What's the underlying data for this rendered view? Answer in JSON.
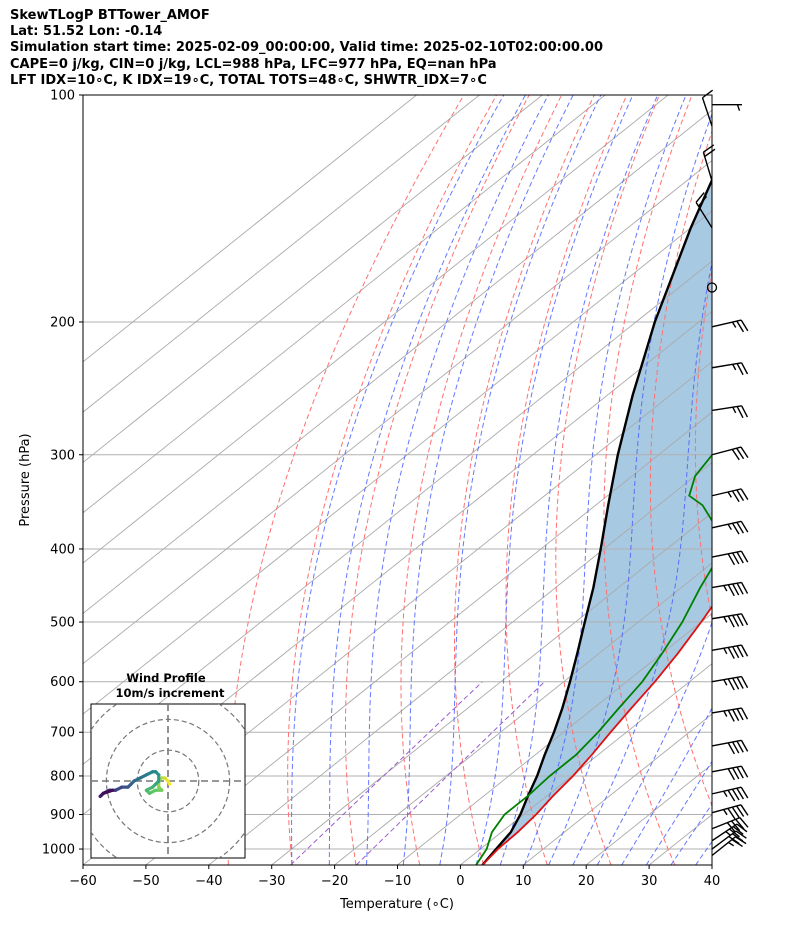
{
  "chart_data": {
    "type": "skewt-logp",
    "title_lines": [
      "SkewTLogP BTTower_AMOF",
      "Lat: 51.52   Lon: -0.14",
      "Simulation start time: 2025-02-09_00:00:00, Valid time: 2025-02-10T02:00:00.00",
      "CAPE=0 j/kg, CIN=0 j/kg, LCL=988 hPa, LFC=977 hPa, EQ=nan hPa",
      "LFT IDX=10∘C, K IDX=19∘C, TOTAL TOTS=48∘C, SHWTR_IDX=7∘C"
    ],
    "xlabel": "Temperature (∘C)",
    "ylabel": "Pressure (hPa)",
    "xlim": [
      -60,
      40
    ],
    "ylim": [
      1050,
      100
    ],
    "x_ticks": [
      -60,
      -50,
      -40,
      -30,
      -20,
      -10,
      0,
      10,
      20,
      30,
      40
    ],
    "y_ticks": [
      1000,
      900,
      800,
      700,
      600,
      500,
      400,
      300,
      200,
      100
    ],
    "temperature": {
      "color": "#e01010",
      "points": [
        [
          1050,
          3.5
        ],
        [
          1000,
          2.8
        ],
        [
          950,
          2.6
        ],
        [
          900,
          2.0
        ],
        [
          850,
          1.0
        ],
        [
          800,
          0.2
        ],
        [
          750,
          -1.0
        ],
        [
          700,
          -2.5
        ],
        [
          650,
          -4.0
        ],
        [
          600,
          -5.5
        ],
        [
          550,
          -7.5
        ],
        [
          500,
          -10.0
        ],
        [
          450,
          -13.0
        ],
        [
          400,
          -17.0
        ],
        [
          380,
          -20.5
        ],
        [
          350,
          -25.5
        ],
        [
          320,
          -29.5
        ],
        [
          300,
          -32.5
        ],
        [
          275,
          -35.0
        ],
        [
          250,
          -39.5
        ],
        [
          220,
          -45.0
        ],
        [
          200,
          -49.0
        ],
        [
          180,
          -53.5
        ],
        [
          160,
          -57.5
        ],
        [
          145,
          -59.5
        ],
        [
          125,
          -61.0
        ],
        [
          112,
          -62.0
        ],
        [
          100,
          -63.5
        ]
      ]
    },
    "dewpoint": {
      "color": "#008000",
      "points": [
        [
          1050,
          2.5
        ],
        [
          1000,
          1.0
        ],
        [
          950,
          -1.5
        ],
        [
          900,
          -3.0
        ],
        [
          850,
          -3.0
        ],
        [
          800,
          -3.5
        ],
        [
          750,
          -3.5
        ],
        [
          700,
          -4.5
        ],
        [
          650,
          -6.0
        ],
        [
          600,
          -7.5
        ],
        [
          550,
          -10.0
        ],
        [
          500,
          -13.0
        ],
        [
          450,
          -17.0
        ],
        [
          400,
          -21.0
        ],
        [
          380,
          -25.0
        ],
        [
          350,
          -33.0
        ],
        [
          340,
          -37.0
        ],
        [
          320,
          -40.0
        ],
        [
          300,
          -41.5
        ],
        [
          275,
          -43.0
        ],
        [
          250,
          -45.5
        ],
        [
          220,
          -50.5
        ],
        [
          200,
          -55.0
        ],
        [
          180,
          -61.0
        ],
        [
          160,
          -68.0
        ],
        [
          140,
          -76.0
        ],
        [
          120,
          -84.0
        ],
        [
          100,
          -92.0
        ]
      ]
    },
    "parcel_profile": {
      "color": "#000000",
      "points": [
        [
          1050,
          3.5
        ],
        [
          1000,
          2.5
        ],
        [
          950,
          1.5
        ],
        [
          900,
          -0.5
        ],
        [
          850,
          -3.0
        ],
        [
          800,
          -5.5
        ],
        [
          750,
          -8.5
        ],
        [
          700,
          -11.5
        ],
        [
          650,
          -15.0
        ],
        [
          600,
          -19.0
        ],
        [
          550,
          -23.5
        ],
        [
          500,
          -28.5
        ],
        [
          450,
          -34.0
        ],
        [
          400,
          -40.5
        ],
        [
          350,
          -48.0
        ],
        [
          300,
          -56.5
        ],
        [
          250,
          -66.0
        ],
        [
          200,
          -77.0
        ],
        [
          150,
          -90.0
        ],
        [
          100,
          -107.0
        ]
      ]
    },
    "shaded_region": {
      "between": [
        "parcel_profile",
        "temperature"
      ],
      "color": "#a3c6e0"
    },
    "dry_adiabats": {
      "color": "#ff7070",
      "theta_K": [
        233,
        243,
        253,
        263,
        273,
        283,
        293,
        303,
        313,
        323,
        333,
        343,
        353,
        363,
        373,
        383,
        393,
        403,
        413,
        423
      ]
    },
    "moist_adiabats": {
      "color": "#4a60ff",
      "start_T_1000": [
        -30,
        -24,
        -18,
        -12,
        -6,
        0,
        4,
        8,
        12,
        16,
        20,
        24,
        28,
        32,
        36
      ]
    },
    "isotherm_color": "#aaaaaa",
    "mixing_ratio_color": "#9b59d0",
    "mixing_ratio_gkg": [
      0.4,
      1
    ],
    "wind_barbs": {
      "color": "#000000",
      "levels": [
        {
          "p": 103,
          "u": 2,
          "v": 0
        },
        {
          "p": 110,
          "u": -2,
          "v": -6
        },
        {
          "p": 130,
          "u": -3,
          "v": -10
        },
        {
          "p": 150,
          "u": -5,
          "v": -8
        },
        {
          "p": 180,
          "u": 0,
          "v": 0
        },
        {
          "p": 203,
          "u": 13,
          "v": -3
        },
        {
          "p": 230,
          "u": 12,
          "v": -2
        },
        {
          "p": 262,
          "u": 13,
          "v": -2
        },
        {
          "p": 300,
          "u": 15,
          "v": -4
        },
        {
          "p": 340,
          "u": 17,
          "v": -4
        },
        {
          "p": 375,
          "u": 18,
          "v": -4
        },
        {
          "p": 410,
          "u": 20,
          "v": -4
        },
        {
          "p": 450,
          "u": 23,
          "v": -4
        },
        {
          "p": 495,
          "u": 24,
          "v": -4
        },
        {
          "p": 545,
          "u": 23,
          "v": -4
        },
        {
          "p": 600,
          "u": 23,
          "v": -4
        },
        {
          "p": 660,
          "u": 24,
          "v": -4
        },
        {
          "p": 730,
          "u": 21,
          "v": -4
        },
        {
          "p": 790,
          "u": 21,
          "v": -4
        },
        {
          "p": 845,
          "u": 22,
          "v": -5
        },
        {
          "p": 895,
          "u": 22,
          "v": -6
        },
        {
          "p": 940,
          "u": 20,
          "v": -8
        },
        {
          "p": 975,
          "u": 15,
          "v": -10
        },
        {
          "p": 1000,
          "u": 12,
          "v": -9
        },
        {
          "p": 1020,
          "u": 10,
          "v": -8
        }
      ]
    },
    "hodograph": {
      "title": "Wind Profile",
      "subtitle": "10m/s increment",
      "ring_step": 10,
      "range": 25,
      "points": [
        [
          0.5,
          -1
        ],
        [
          0,
          0
        ],
        [
          -1,
          1
        ],
        [
          -2,
          1
        ],
        [
          -3,
          0
        ],
        [
          -3,
          -2
        ],
        [
          -2,
          -3
        ],
        [
          -4,
          -3
        ],
        [
          -6,
          -4
        ],
        [
          -7,
          -3
        ],
        [
          -5,
          -2
        ],
        [
          -4,
          -1
        ],
        [
          -3,
          0
        ],
        [
          -3,
          2
        ],
        [
          -4,
          3
        ],
        [
          -5,
          3
        ],
        [
          -7,
          2
        ],
        [
          -9,
          1
        ],
        [
          -11,
          0
        ],
        [
          -12,
          -1
        ],
        [
          -13,
          -2
        ],
        [
          -15,
          -2
        ],
        [
          -17,
          -3
        ],
        [
          -19,
          -3
        ],
        [
          -21,
          -4
        ],
        [
          -22,
          -5
        ],
        [
          -21,
          -4
        ],
        [
          -18,
          -3
        ]
      ],
      "colormap": [
        "#440154",
        "#3b528b",
        "#21918c",
        "#5ec962",
        "#fde725"
      ]
    }
  }
}
